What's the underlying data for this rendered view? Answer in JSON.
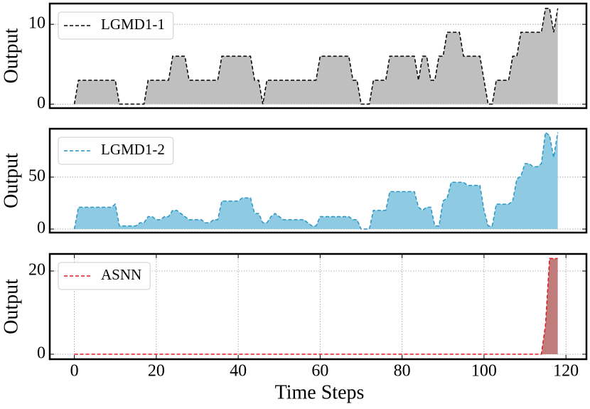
{
  "chart_data": [
    {
      "type": "area",
      "ylabel": "Output",
      "legend": "upper left",
      "grid": true,
      "xlim": [
        -6,
        125
      ],
      "ylim": [
        -0.5,
        12.6
      ],
      "yticks": [
        0,
        10
      ],
      "x": [
        0,
        1,
        2,
        3,
        4,
        5,
        6,
        7,
        8,
        9,
        10,
        11,
        12,
        13,
        14,
        15,
        16,
        17,
        18,
        19,
        20,
        21,
        22,
        23,
        24,
        25,
        26,
        27,
        28,
        29,
        30,
        31,
        32,
        33,
        34,
        35,
        36,
        37,
        38,
        39,
        40,
        41,
        42,
        43,
        44,
        45,
        46,
        47,
        48,
        49,
        50,
        51,
        52,
        53,
        54,
        55,
        56,
        57,
        58,
        59,
        60,
        61,
        62,
        63,
        64,
        65,
        66,
        67,
        68,
        69,
        70,
        71,
        72,
        73,
        74,
        75,
        76,
        77,
        78,
        79,
        80,
        81,
        82,
        83,
        84,
        85,
        86,
        87,
        88,
        89,
        90,
        91,
        92,
        93,
        94,
        95,
        96,
        97,
        98,
        99,
        100,
        101,
        102,
        103,
        104,
        105,
        106,
        107,
        108,
        109,
        110,
        111,
        112,
        113,
        114,
        115,
        116,
        117,
        118
      ],
      "series": [
        {
          "name": "LGMD1-1",
          "color": "#000000",
          "fill_color": "#bfbfbf",
          "values": [
            0,
            3,
            3,
            3,
            3,
            3,
            3,
            3,
            3,
            3,
            3,
            0,
            0,
            0,
            0,
            0,
            0,
            0,
            3,
            3,
            3,
            3,
            3,
            3,
            6,
            6,
            6,
            6,
            3,
            3,
            3,
            3,
            3,
            3,
            3,
            3,
            6,
            6,
            6,
            6,
            6,
            6,
            6,
            6,
            3,
            3,
            0,
            3,
            3,
            3,
            3,
            3,
            3,
            3,
            3,
            3,
            3,
            3,
            3,
            3,
            6,
            6,
            6,
            6,
            6,
            6,
            6,
            6,
            3,
            3,
            0,
            0,
            0,
            3,
            3,
            3,
            3,
            6,
            6,
            6,
            6,
            6,
            6,
            6,
            3,
            6,
            6,
            3,
            3,
            6,
            6,
            9,
            9,
            9,
            9,
            6,
            6,
            6,
            6,
            6,
            3,
            0,
            0,
            3,
            3,
            3,
            3,
            6,
            6,
            9,
            9,
            9,
            9,
            9,
            9,
            12,
            12,
            9,
            12
          ]
        }
      ]
    },
    {
      "type": "area",
      "ylabel": "Output",
      "legend": "upper left",
      "grid": true,
      "xlim": [
        -6,
        125
      ],
      "ylim": [
        -3.4,
        96.5
      ],
      "yticks": [
        0,
        50
      ],
      "x": [
        0,
        1,
        2,
        3,
        4,
        5,
        6,
        7,
        8,
        9,
        10,
        11,
        12,
        13,
        14,
        15,
        16,
        17,
        18,
        19,
        20,
        21,
        22,
        23,
        24,
        25,
        26,
        27,
        28,
        29,
        30,
        31,
        32,
        33,
        34,
        35,
        36,
        37,
        38,
        39,
        40,
        41,
        42,
        43,
        44,
        45,
        46,
        47,
        48,
        49,
        50,
        51,
        52,
        53,
        54,
        55,
        56,
        57,
        58,
        59,
        60,
        61,
        62,
        63,
        64,
        65,
        66,
        67,
        68,
        69,
        70,
        71,
        72,
        73,
        74,
        75,
        76,
        77,
        78,
        79,
        80,
        81,
        82,
        83,
        84,
        85,
        86,
        87,
        88,
        89,
        90,
        91,
        92,
        93,
        94,
        95,
        96,
        97,
        98,
        99,
        100,
        101,
        102,
        103,
        104,
        105,
        106,
        107,
        108,
        109,
        110,
        111,
        112,
        113,
        114,
        115,
        116,
        117,
        118
      ],
      "series": [
        {
          "name": "LGMD1-2",
          "color": "#2a96c4",
          "fill_color": "#8ecae2",
          "values": [
            0,
            21,
            21,
            21,
            21,
            21,
            21,
            21,
            21,
            21,
            24,
            3,
            3,
            3,
            3,
            3,
            6,
            6,
            12,
            12,
            9,
            9,
            12,
            12,
            18,
            18,
            15,
            12,
            9,
            9,
            9,
            9,
            6,
            6,
            9,
            9,
            27,
            27,
            27,
            27,
            27,
            30,
            30,
            30,
            15,
            15,
            6,
            6,
            12,
            15,
            12,
            9,
            9,
            9,
            9,
            9,
            9,
            6,
            3,
            3,
            12,
            12,
            12,
            12,
            12,
            12,
            12,
            12,
            9,
            9,
            0,
            0,
            0,
            18,
            18,
            18,
            18,
            36,
            36,
            36,
            36,
            36,
            36,
            36,
            21,
            18,
            21,
            21,
            3,
            3,
            27,
            30,
            45,
            45,
            45,
            45,
            42,
            42,
            42,
            42,
            18,
            3,
            3,
            24,
            24,
            24,
            24,
            27,
            48,
            51,
            63,
            63,
            60,
            60,
            63,
            93,
            90,
            69,
            93
          ]
        }
      ]
    },
    {
      "type": "area",
      "ylabel": "Output",
      "xlabel": "Time Steps",
      "legend": "upper left",
      "grid": true,
      "xlim": [
        -6,
        125
      ],
      "ylim": [
        -1.2,
        24.1
      ],
      "yticks": [
        0,
        20
      ],
      "xticks": [
        0,
        20,
        40,
        60,
        80,
        100,
        120
      ],
      "x": [
        0,
        1,
        2,
        3,
        4,
        5,
        6,
        7,
        8,
        9,
        10,
        11,
        12,
        13,
        14,
        15,
        16,
        17,
        18,
        19,
        20,
        21,
        22,
        23,
        24,
        25,
        26,
        27,
        28,
        29,
        30,
        31,
        32,
        33,
        34,
        35,
        36,
        37,
        38,
        39,
        40,
        41,
        42,
        43,
        44,
        45,
        46,
        47,
        48,
        49,
        50,
        51,
        52,
        53,
        54,
        55,
        56,
        57,
        58,
        59,
        60,
        61,
        62,
        63,
        64,
        65,
        66,
        67,
        68,
        69,
        70,
        71,
        72,
        73,
        74,
        75,
        76,
        77,
        78,
        79,
        80,
        81,
        82,
        83,
        84,
        85,
        86,
        87,
        88,
        89,
        90,
        91,
        92,
        93,
        94,
        95,
        96,
        97,
        98,
        99,
        100,
        101,
        102,
        103,
        104,
        105,
        106,
        107,
        108,
        109,
        110,
        111,
        112,
        113,
        114,
        115,
        116,
        117,
        118
      ],
      "series": [
        {
          "name": "ASNN",
          "color": "#e41a1c",
          "fill_color": "#c07b7b",
          "values": [
            0,
            0,
            0,
            0,
            0,
            0,
            0,
            0,
            0,
            0,
            0,
            0,
            0,
            0,
            0,
            0,
            0,
            0,
            0,
            0,
            0,
            0,
            0,
            0,
            0,
            0,
            0,
            0,
            0,
            0,
            0,
            0,
            0,
            0,
            0,
            0,
            0,
            0,
            0,
            0,
            0,
            0,
            0,
            0,
            0,
            0,
            0,
            0,
            0,
            0,
            0,
            0,
            0,
            0,
            0,
            0,
            0,
            0,
            0,
            0,
            0,
            0,
            0,
            0,
            0,
            0,
            0,
            0,
            0,
            0,
            0,
            0,
            0,
            0,
            0,
            0,
            0,
            0,
            0,
            0,
            0,
            0,
            0,
            0,
            0,
            0,
            0,
            0,
            0,
            0,
            0,
            0,
            0,
            0,
            0,
            0,
            0,
            0,
            0,
            0,
            0,
            0,
            0,
            0,
            0,
            0,
            0,
            0,
            0,
            0,
            0,
            0,
            0,
            0,
            0,
            7,
            23,
            23,
            23
          ]
        }
      ]
    }
  ]
}
